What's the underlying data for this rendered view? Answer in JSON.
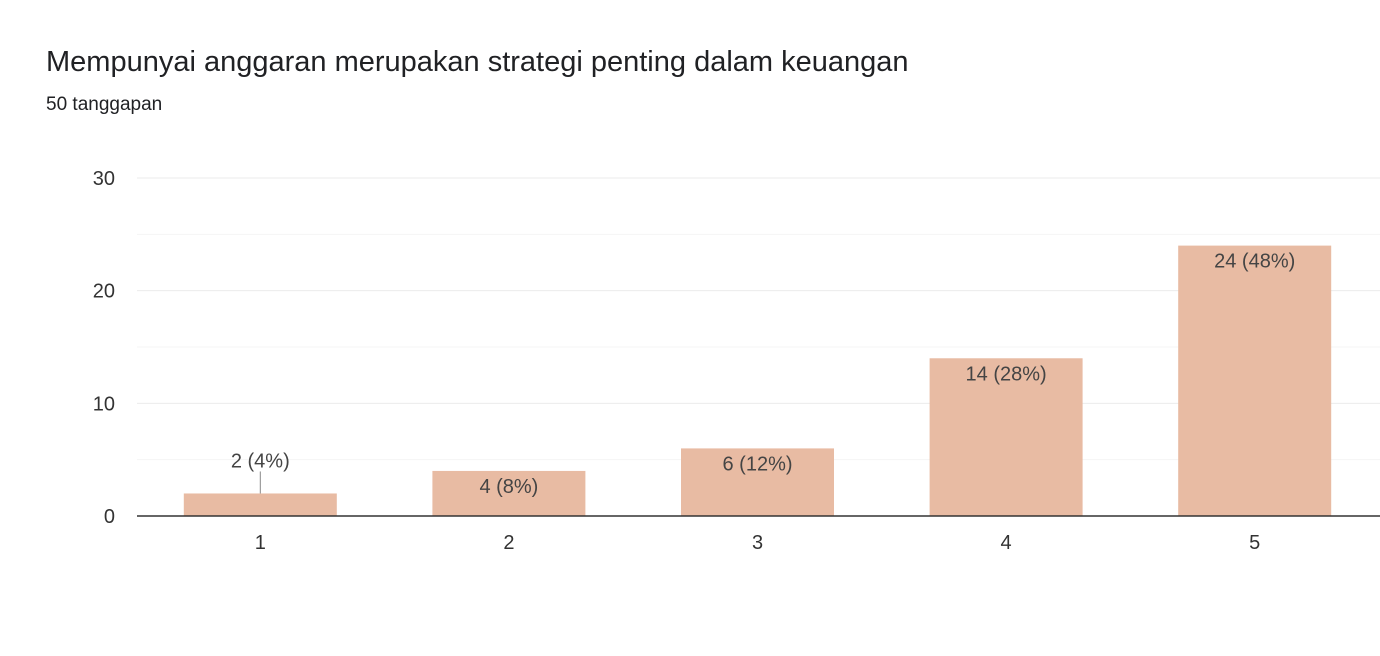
{
  "header": {
    "title": "Mempunyai anggaran merupakan strategi penting dalam keuangan",
    "subtitle": "50 tanggapan"
  },
  "colors": {
    "bar": "#e8bba3",
    "axis": "#333333",
    "gridline": "#ebebeb",
    "minor_gridline": "#f5f5f5",
    "label_text": "#444444"
  },
  "chart_data": {
    "type": "bar",
    "title": "Mempunyai anggaran merupakan strategi penting dalam keuangan",
    "subtitle": "50 tanggapan",
    "categories": [
      "1",
      "2",
      "3",
      "4",
      "5"
    ],
    "values": [
      2,
      4,
      6,
      14,
      24
    ],
    "data_labels": [
      "2 (4%)",
      "4 (8%)",
      "6 (12%)",
      "14 (28%)",
      "24 (48%)"
    ],
    "ylim": [
      0,
      30
    ],
    "yticks": [
      0,
      10,
      20,
      30
    ],
    "xlabel": "",
    "ylabel": "",
    "grid": true,
    "legend": "none"
  }
}
